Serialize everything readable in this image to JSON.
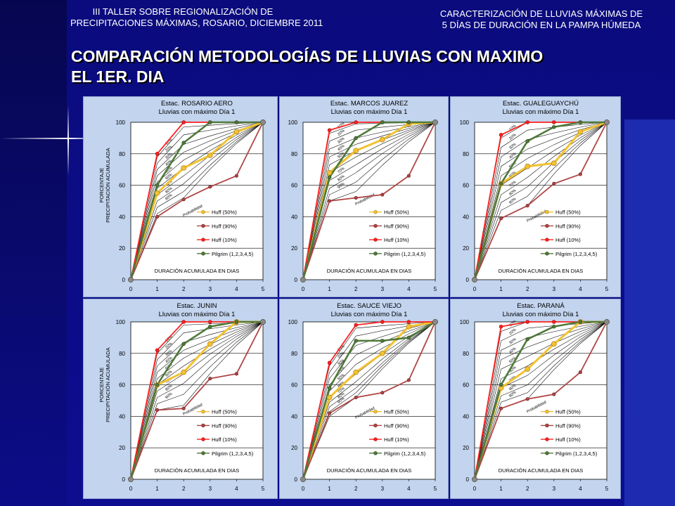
{
  "header": {
    "left_lines": [
      "III TALLER SOBRE REGIONALIZACIÓN DE",
      "PRECIPITACIONES MÁXIMAS, ROSARIO, DICIEMBRE 2011"
    ],
    "right_lines": [
      "CARACTERIZACIÓN DE LLUVIAS MÁXIMAS DE",
      "5 DÍAS DE DURACIÓN EN LA PAMPA HÚMEDA"
    ]
  },
  "main_title_lines": [
    "COMPARACIÓN METODOLOGÍAS DE LLUVIAS CON MAXIMO",
    "EL 1ER. DIA"
  ],
  "colors": {
    "huff50": "#f2c230",
    "huff90": "#b04545",
    "huff10": "#ff2020",
    "pilgrim": "#4f7a3a",
    "prob_lines": "#000000",
    "panel_bg": "#c2d4ee",
    "plot_bg": "#ffffff"
  },
  "chart_data": [
    {
      "type": "line",
      "title": "Estac. ROSARIO AERO",
      "subtitle": "Lluvias con máximo Día 1",
      "xlabel": "DURACIÓN ACUMULADA EN DIAS",
      "ylabel": [
        "PORCENTAJE",
        "PRECIPITACIÓN ACUMULADA"
      ],
      "xlim": [
        0,
        5
      ],
      "ylim": [
        0,
        100
      ],
      "xticks": [
        "0",
        "1",
        "2",
        "3",
        "4",
        "5"
      ],
      "yticks": [
        "0",
        "20",
        "40",
        "60",
        "80",
        "100"
      ],
      "x": [
        0,
        1,
        2,
        3,
        4,
        5
      ],
      "series": [
        {
          "name": "Huff (50%)",
          "key": "huff50",
          "values": [
            0,
            55,
            71,
            79,
            94,
            100
          ]
        },
        {
          "name": "Huff (90%)",
          "key": "huff90",
          "values": [
            0,
            40,
            51,
            59,
            66,
            100
          ]
        },
        {
          "name": "Huff (10%)",
          "key": "huff10",
          "values": [
            0,
            80,
            100,
            100,
            100,
            100
          ]
        },
        {
          "name": "Pilgrim (1,2,3,4,5)",
          "key": "pilgrim",
          "values": [
            0,
            60,
            87,
            100,
            100,
            100
          ]
        }
      ],
      "prob_day1": [
        78,
        74,
        70,
        66,
        62,
        58,
        54,
        50,
        46,
        42
      ],
      "prob_day2": [
        97,
        92,
        86,
        81,
        76,
        71,
        66,
        61,
        56,
        52
      ],
      "prob_labels": [
        "10%",
        "20%",
        "30%",
        "40%",
        "50%",
        "60%",
        "70%",
        "80%",
        "90%"
      ],
      "prob_axis_label": "Probabilidad"
    },
    {
      "type": "line",
      "title": "Estac. MARCOS JUAREZ",
      "subtitle": "Lluvias con máximo Día 1",
      "xlabel": "DURACIÓN ACUMULADA EN DIAS",
      "ylabel": [],
      "xlim": [
        0,
        5
      ],
      "ylim": [
        0,
        100
      ],
      "xticks": [
        "0",
        "1",
        "2",
        "3",
        "4",
        "5"
      ],
      "yticks": [
        "0",
        "20",
        "40",
        "60",
        "80",
        "100"
      ],
      "x": [
        0,
        1,
        2,
        3,
        4,
        5
      ],
      "series": [
        {
          "name": "Huff (50%)",
          "key": "huff50",
          "values": [
            0,
            68,
            82,
            89,
            99,
            100
          ]
        },
        {
          "name": "Huff (90%)",
          "key": "huff90",
          "values": [
            0,
            50,
            52,
            54,
            66,
            100
          ]
        },
        {
          "name": "Huff (10%)",
          "key": "huff10",
          "values": [
            0,
            95,
            100,
            100,
            100,
            100
          ]
        },
        {
          "name": "Pilgrim (1,2,3,4,5)",
          "key": "pilgrim",
          "values": [
            0,
            65,
            90,
            100,
            100,
            100
          ]
        }
      ],
      "prob_day1": [
        93,
        88,
        83,
        78,
        73,
        68,
        63,
        58,
        54,
        50
      ],
      "prob_day2": [
        99,
        95,
        90,
        86,
        82,
        78,
        73,
        68,
        62,
        56
      ],
      "prob_labels": [
        "10%",
        "20%",
        "30%",
        "40%",
        "50%",
        "60%",
        "70%",
        "80%",
        "90%"
      ],
      "prob_axis_label": "Probabilidad"
    },
    {
      "type": "line",
      "title": "Estac. GUALEGUAYCHÚ",
      "subtitle": "Lluvias con máximo Día 1",
      "xlabel": "DURACIÓN ACUMULADA EN DIAS",
      "ylabel": [],
      "xlim": [
        0,
        5
      ],
      "ylim": [
        0,
        100
      ],
      "xticks": [
        "0",
        "1",
        "2",
        "3",
        "4",
        "5"
      ],
      "yticks": [
        "0",
        "20",
        "40",
        "60",
        "80",
        "100"
      ],
      "x": [
        0,
        1,
        2,
        3,
        4,
        5
      ],
      "series": [
        {
          "name": "Huff (50%)",
          "key": "huff50",
          "values": [
            0,
            61,
            72,
            74,
            94,
            100
          ]
        },
        {
          "name": "Huff (90%)",
          "key": "huff90",
          "values": [
            0,
            39,
            47,
            61,
            67,
            100
          ]
        },
        {
          "name": "Huff (10%)",
          "key": "huff10",
          "values": [
            0,
            92,
            100,
            100,
            100,
            100
          ]
        },
        {
          "name": "Pilgrim (1,2,3,4,5)",
          "key": "pilgrim",
          "values": [
            0,
            61,
            88,
            97,
            100,
            100
          ]
        }
      ],
      "prob_day1": [
        90,
        84,
        78,
        72,
        66,
        60,
        54,
        49,
        44,
        39
      ],
      "prob_day2": [
        100,
        95,
        89,
        83,
        77,
        71,
        65,
        59,
        53,
        47
      ],
      "prob_labels": [
        "10%",
        "20%",
        "30%",
        "40%",
        "50%",
        "60%",
        "70%",
        "80%",
        "90%"
      ],
      "prob_axis_label": "Probabilidad"
    },
    {
      "type": "line",
      "title": "Estac. JUNIN",
      "subtitle": "Lluvias con máximo Día 1",
      "xlabel": "DURACIÓN ACUMULADA EN DIAS",
      "ylabel": [
        "PORCENTAJE",
        "PRECIPITACIÓN ACUMULADA"
      ],
      "xlim": [
        0,
        5
      ],
      "ylim": [
        0,
        100
      ],
      "xticks": [
        "0",
        "1",
        "2",
        "3",
        "4",
        "5"
      ],
      "yticks": [
        "0",
        "20",
        "40",
        "60",
        "80",
        "100"
      ],
      "x": [
        0,
        1,
        2,
        3,
        4,
        5
      ],
      "series": [
        {
          "name": "Huff (50%)",
          "key": "huff50",
          "values": [
            0,
            60,
            68,
            86,
            100,
            100
          ]
        },
        {
          "name": "Huff (90%)",
          "key": "huff90",
          "values": [
            0,
            44,
            45,
            64,
            67,
            100
          ]
        },
        {
          "name": "Huff (10%)",
          "key": "huff10",
          "values": [
            0,
            82,
            100,
            100,
            100,
            100
          ]
        },
        {
          "name": "Pilgrim (1,2,3,4,5)",
          "key": "pilgrim",
          "values": [
            0,
            60,
            86,
            97,
            100,
            100
          ]
        }
      ],
      "prob_day1": [
        80,
        76,
        72,
        68,
        64,
        60,
        56,
        52,
        48,
        44
      ],
      "prob_day2": [
        98,
        93,
        87,
        82,
        77,
        72,
        67,
        61,
        54,
        47
      ],
      "prob_labels": [
        "10%",
        "20%",
        "30%",
        "40%",
        "50%",
        "60%",
        "70%",
        "80%",
        "90%"
      ],
      "prob_axis_label": "Probabilidad"
    },
    {
      "type": "line",
      "title": "Estac. SAUCE VIEJO",
      "subtitle": "Lluvias con máximo Día 1",
      "xlabel": "DURACIÓN ACUMULADA EN DIAS",
      "ylabel": [],
      "xlim": [
        0,
        5
      ],
      "ylim": [
        0,
        100
      ],
      "xticks": [
        "0",
        "1",
        "2",
        "3",
        "4",
        "5"
      ],
      "yticks": [
        "0",
        "20",
        "40",
        "60",
        "80",
        "100"
      ],
      "x": [
        0,
        1,
        2,
        3,
        4,
        5
      ],
      "series": [
        {
          "name": "Huff (50%)",
          "key": "huff50",
          "values": [
            0,
            52,
            68,
            80,
            97,
            100
          ]
        },
        {
          "name": "Huff (90%)",
          "key": "huff90",
          "values": [
            0,
            42,
            52,
            55,
            63,
            100
          ]
        },
        {
          "name": "Huff (10%)",
          "key": "huff10",
          "values": [
            0,
            74,
            98,
            100,
            100,
            100
          ]
        },
        {
          "name": "Pilgrim (1,2,3,4,5)",
          "key": "pilgrim",
          "values": [
            0,
            58,
            88,
            88,
            90,
            100
          ]
        }
      ],
      "prob_day1": [
        72,
        68,
        64,
        60,
        56,
        52,
        49,
        46,
        43,
        40
      ],
      "prob_day2": [
        96,
        91,
        85,
        79,
        73,
        67,
        62,
        58,
        55,
        52
      ],
      "prob_labels": [
        "10%",
        "20%",
        "30%",
        "40%",
        "50%",
        "60%",
        "70%",
        "80%",
        "90%"
      ],
      "prob_axis_label": "Probabilidad"
    },
    {
      "type": "line",
      "title": "Estac. PARANÁ",
      "subtitle": "Lluvias con máximo Día 1",
      "xlabel": "DURACIÓN ACUMULADA EN DIAS",
      "ylabel": [],
      "xlim": [
        0,
        5
      ],
      "ylim": [
        0,
        100
      ],
      "xticks": [
        "0",
        "1",
        "2",
        "3",
        "4",
        "5"
      ],
      "yticks": [
        "0",
        "20",
        "40",
        "60",
        "80",
        "100"
      ],
      "x": [
        0,
        1,
        2,
        3,
        4,
        5
      ],
      "series": [
        {
          "name": "Huff (50%)",
          "key": "huff50",
          "values": [
            0,
            58,
            70,
            86,
            100,
            100
          ]
        },
        {
          "name": "Huff (90%)",
          "key": "huff90",
          "values": [
            0,
            45,
            51,
            54,
            68,
            100
          ]
        },
        {
          "name": "Huff (10%)",
          "key": "huff10",
          "values": [
            0,
            97,
            100,
            100,
            100,
            100
          ]
        },
        {
          "name": "Pilgrim (1,2,3,4,5)",
          "key": "pilgrim",
          "values": [
            0,
            60,
            89,
            97,
            100,
            100
          ]
        }
      ],
      "prob_day1": [
        94,
        88,
        82,
        76,
        70,
        64,
        58,
        53,
        49,
        45
      ],
      "prob_day2": [
        100,
        96,
        90,
        84,
        78,
        72,
        66,
        60,
        55,
        51
      ],
      "prob_labels": [
        "10%",
        "20%",
        "30%",
        "40%",
        "50%",
        "60%",
        "70%",
        "80%",
        "90%"
      ],
      "prob_axis_label": "Probabilidad"
    }
  ]
}
